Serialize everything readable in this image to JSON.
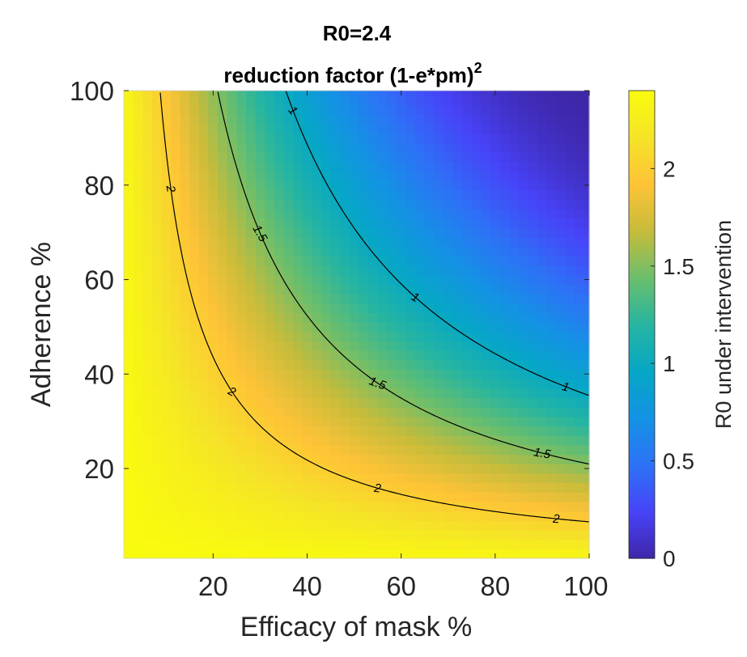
{
  "chart_data": {
    "type": "heatmap",
    "title_line1": "R0=2.4",
    "title_line2_main": "reduction factor (1-e*pm)",
    "title_line2_sup": "2",
    "xlabel": "Efficacy of mask %",
    "ylabel": "Adherence %",
    "colorbar_label": "R0 under intervention",
    "R0": 2.4,
    "formula": "R0*(1-e*pm)^2",
    "x_range": [
      1,
      100
    ],
    "y_range": [
      1,
      100
    ],
    "grid_step": 2,
    "x_ticks": [
      20,
      40,
      60,
      80,
      100
    ],
    "x_tick_labels": [
      "20",
      "40",
      "60",
      "80",
      "100"
    ],
    "y_ticks": [
      20,
      40,
      60,
      80,
      100
    ],
    "y_tick_labels": [
      "20",
      "40",
      "60",
      "80",
      "100"
    ],
    "color_range": [
      0,
      2.4
    ],
    "colorbar_ticks": [
      0,
      0.5,
      1,
      1.5,
      2
    ],
    "colorbar_tick_labels": [
      "0",
      "0.5",
      "1",
      "1.5",
      "2"
    ],
    "contour_levels": [
      1,
      1.5,
      2
    ],
    "contour_labels": [
      {
        "level": 1,
        "text": "1",
        "x": 37,
        "rotation_deg": 50
      },
      {
        "level": 1,
        "text": "1",
        "x": 63,
        "rotation_deg": 28
      },
      {
        "level": 1,
        "text": "1",
        "x": 95,
        "rotation_deg": 15
      },
      {
        "level": 1.5,
        "text": "1.5",
        "x": 30,
        "rotation_deg": 60
      },
      {
        "level": 1.5,
        "text": "1.5",
        "x": 55,
        "rotation_deg": 20
      },
      {
        "level": 1.5,
        "text": "1.5",
        "x": 90,
        "rotation_deg": 10
      },
      {
        "level": 2,
        "text": "2",
        "x": 11,
        "rotation_deg": 80
      },
      {
        "level": 2,
        "text": "2",
        "x": 24,
        "rotation_deg": 28
      },
      {
        "level": 2,
        "text": "2",
        "x": 55,
        "rotation_deg": 8
      },
      {
        "level": 2,
        "text": "2",
        "x": 93,
        "rotation_deg": 3
      }
    ],
    "colormap_name": "parula",
    "colormap": [
      "#3E26A8",
      "#4743F8",
      "#2D72F6",
      "#1492E4",
      "#06A7C6",
      "#26B5A1",
      "#6BBE6C",
      "#C6BC3B",
      "#FEC337",
      "#F5E427",
      "#F9FB0E"
    ]
  }
}
